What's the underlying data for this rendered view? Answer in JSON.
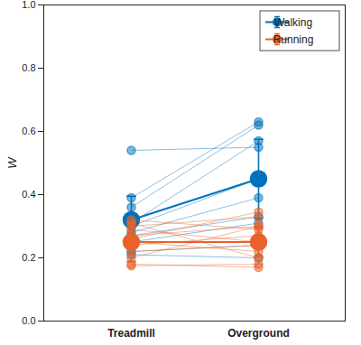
{
  "chart_data": {
    "type": "scatter",
    "categories": [
      "Treadmill",
      "Overground"
    ],
    "ylabel": "W",
    "ylim": [
      0,
      1
    ],
    "yticks": [
      0,
      0.2,
      0.4,
      0.6,
      0.8,
      1
    ],
    "legend": "upper right",
    "marker": "circle",
    "series": [
      {
        "name": "Walking",
        "color": "#0072BD",
        "values": [
          0.32,
          0.45
        ],
        "errors": [
          0.075,
          0.125
        ],
        "subjects": [
          [
            0.54,
            0.55
          ],
          [
            0.39,
            0.63
          ],
          [
            0.36,
            0.62
          ],
          [
            0.31,
            0.57
          ],
          [
            0.3,
            0.45
          ],
          [
            0.28,
            0.39
          ],
          [
            0.27,
            0.33
          ],
          [
            0.25,
            0.31
          ],
          [
            0.22,
            0.24
          ],
          [
            0.21,
            0.2
          ]
        ]
      },
      {
        "name": "Running",
        "color": "#E8622A",
        "values": [
          0.25,
          0.25
        ],
        "errors": [
          0.062,
          0.045
        ],
        "subjects": [
          [
            0.32,
            0.29
          ],
          [
            0.31,
            0.2
          ],
          [
            0.3,
            0.33
          ],
          [
            0.29,
            0.25
          ],
          [
            0.27,
            0.3
          ],
          [
            0.26,
            0.345
          ],
          [
            0.25,
            0.22
          ],
          [
            0.24,
            0.27
          ],
          [
            0.22,
            0.24
          ],
          [
            0.2,
            0.3
          ],
          [
            0.18,
            0.17
          ],
          [
            0.175,
            0.18
          ]
        ]
      }
    ]
  }
}
